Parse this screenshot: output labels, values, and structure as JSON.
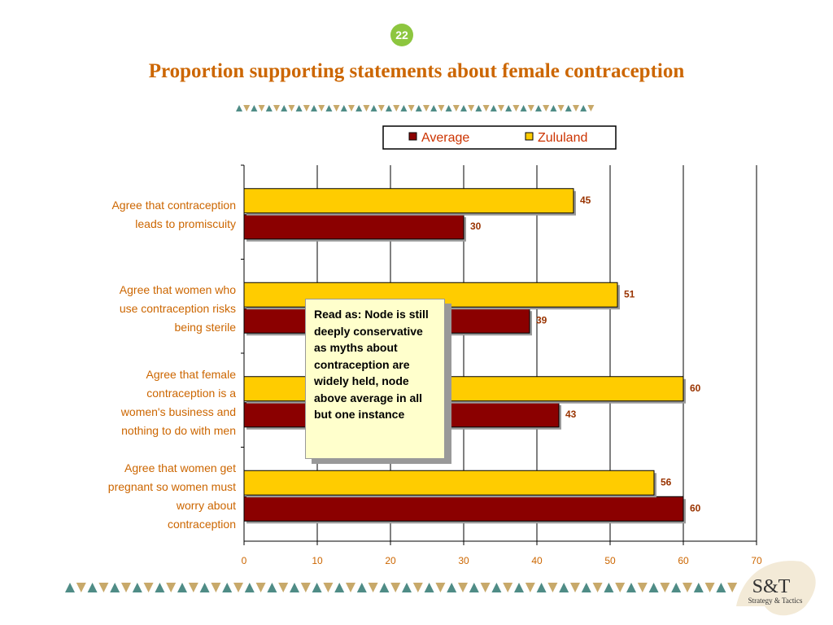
{
  "page_number": "22",
  "logo": {
    "mark": "S&T",
    "tagline": "Strategy & Tactics"
  },
  "annotation": "Read as: Node is still deeply conservative as myths about contraception are widely held, node above average in all but one instance",
  "chart_data": {
    "type": "bar",
    "orientation": "horizontal",
    "title": "Proportion supporting statements about female contraception",
    "categories": [
      "Agree that contraception\nleads to promiscuity",
      "Agree that women who\nuse contraception risks\nbeing sterile",
      "Agree that female\ncontraception is a\nwomen's business and\nnothing to do with men",
      "Agree that women get\npregnant so women must\nworry about\ncontraception"
    ],
    "series": [
      {
        "name": "Average",
        "color": "#8b0000",
        "values": [
          30,
          39,
          43,
          60
        ]
      },
      {
        "name": "Zululand",
        "color": "#ffcc00",
        "values": [
          45,
          51,
          60,
          56
        ]
      }
    ],
    "xlim": [
      0,
      70
    ],
    "xticks": [
      0,
      10,
      20,
      30,
      40,
      50,
      60,
      70
    ],
    "grid": true,
    "legend": "top"
  }
}
